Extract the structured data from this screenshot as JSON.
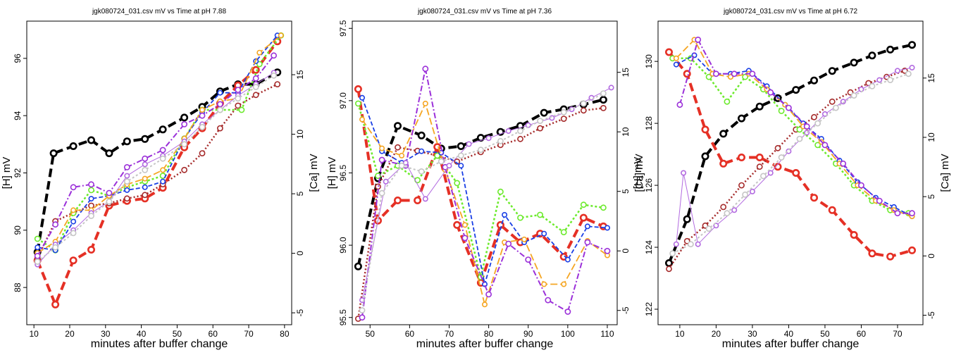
{
  "chart_data": [
    {
      "type": "line",
      "title": "jgk080724_031.csv mV vs Time at pH 7.88",
      "xlabel": "minutes after buffer change",
      "ylabel": "[H] mV",
      "y2label": "[Ca] mV",
      "xlim": [
        8,
        82
      ],
      "ylim": [
        86.7,
        97.3
      ],
      "y2lim": [
        -6.0,
        19.5
      ],
      "xticks": [
        "10",
        "20",
        "30",
        "40",
        "50",
        "60",
        "70",
        "80"
      ],
      "yticks": [
        "88",
        "90",
        "92",
        "94",
        "96"
      ],
      "y2ticks": [
        "-5",
        "0",
        "5",
        "10",
        "15"
      ],
      "grid": false,
      "legend": "none",
      "series": [
        {
          "axis": "right",
          "color": "#000000",
          "dash": "12,6",
          "width": 4,
          "x": [
            11,
            15.5,
            21,
            26,
            31,
            36,
            41,
            46,
            52,
            57,
            62,
            67,
            72,
            78
          ],
          "y": [
            0.1,
            8.4,
            9.0,
            9.5,
            8.4,
            9.4,
            9.6,
            10.4,
            11.4,
            12.3,
            13.6,
            14.2,
            14.2,
            15.2
          ]
        },
        {
          "axis": "right",
          "color": "#e53025",
          "dash": "12,6",
          "width": 4,
          "x": [
            11,
            16,
            21,
            26,
            31,
            36,
            41,
            46,
            52,
            57,
            62,
            67,
            72,
            78
          ],
          "y": [
            -0.6,
            -4.3,
            -0.6,
            0.3,
            4.0,
            4.4,
            4.6,
            5.5,
            8.9,
            10.5,
            12.6,
            14.1,
            15.4,
            17.8
          ]
        },
        {
          "axis": "right",
          "color": "#a52a2a",
          "dash": "2,3",
          "width": 2.5,
          "x": [
            11,
            16,
            21,
            26,
            31,
            36,
            41,
            46,
            52,
            57,
            62,
            67,
            72,
            78
          ],
          "y": [
            -0.4,
            2.7,
            3.4,
            4.0,
            4.2,
            4.6,
            4.9,
            5.8,
            7.0,
            8.4,
            10.5,
            12.4,
            13.3,
            14.2
          ]
        },
        {
          "axis": "left",
          "color": "#6cea2c",
          "dash": "3,3",
          "width": 2.5,
          "x": [
            11,
            16,
            21,
            26,
            31,
            36,
            41,
            46,
            52,
            57,
            62,
            68,
            73,
            79
          ],
          "y": [
            89.7,
            89.3,
            90.6,
            91.4,
            91.2,
            91.5,
            91.7,
            91.9,
            93.2,
            94.2,
            94.2,
            94.2,
            95.8,
            96.8
          ]
        },
        {
          "axis": "left",
          "color": "#1a3fe5",
          "dash": "6,3",
          "width": 1.8,
          "x": [
            11,
            16,
            21,
            26,
            31,
            36,
            41,
            46,
            52,
            57,
            62,
            67,
            72,
            78
          ],
          "y": [
            89.4,
            89.3,
            90.3,
            91.1,
            91.2,
            91.4,
            91.5,
            91.7,
            93.2,
            94.1,
            94.8,
            94.8,
            95.9,
            96.8
          ]
        },
        {
          "axis": "left",
          "color": "#f5a623",
          "dash": "10,4",
          "width": 1.8,
          "x": [
            11,
            16,
            21,
            26,
            31,
            36,
            41,
            46,
            52,
            57,
            62,
            67,
            73,
            79
          ],
          "y": [
            89.2,
            89.6,
            90.7,
            90.7,
            91.2,
            91.6,
            91.8,
            92.1,
            93.2,
            94.2,
            94.5,
            94.6,
            96.2,
            96.8
          ]
        },
        {
          "axis": "left",
          "color": "#9b30d9",
          "dash": "8,3,2,3",
          "width": 2,
          "x": [
            11,
            16,
            21,
            26,
            31,
            36,
            41,
            46,
            52,
            57,
            62,
            67,
            72,
            77
          ],
          "y": [
            89.1,
            90.2,
            91.5,
            91.6,
            91.3,
            92.2,
            92.5,
            92.8,
            93.7,
            94.0,
            94.4,
            94.9,
            95.3,
            96.1
          ]
        },
        {
          "axis": "left",
          "color": "#b26ae0",
          "dash": "",
          "width": 1,
          "x": [
            11,
            16,
            21,
            26,
            31,
            36,
            41,
            46,
            52,
            57,
            62,
            67,
            72,
            77
          ],
          "y": [
            88.8,
            89.5,
            90.0,
            90.6,
            91.0,
            91.9,
            92.3,
            92.6,
            93.1,
            93.7,
            94.2,
            94.7,
            95.1,
            95.5
          ]
        },
        {
          "axis": "left",
          "color": "#c5c5c5",
          "dash": "3,3",
          "width": 2,
          "x": [
            11,
            16,
            21,
            26,
            31,
            36,
            41,
            46,
            52,
            57,
            62,
            67,
            72,
            77
          ],
          "y": [
            88.9,
            89.4,
            89.9,
            90.5,
            91.0,
            91.7,
            92.1,
            92.5,
            93.0,
            93.6,
            94.2,
            94.6,
            95.0,
            95.4
          ]
        }
      ]
    },
    {
      "type": "line",
      "title": "jgk080724_031.csv mV vs Time at pH 7.36",
      "xlabel": "minutes after buffer change",
      "ylabel": "[H] mV",
      "y2label": "[Ca] mV",
      "xlim": [
        45.5,
        112.5
      ],
      "ylim": [
        95.45,
        97.55
      ],
      "y2lim": [
        -6.2,
        19.3
      ],
      "xticks": [
        "50",
        "60",
        "70",
        "80",
        "90",
        "100",
        "110"
      ],
      "yticks": [
        "95.5",
        "96.0",
        "96.5",
        "97.0",
        "97.5"
      ],
      "y2ticks": [
        "-5",
        "0",
        "5",
        "10",
        "15"
      ],
      "grid": false,
      "legend": "none",
      "series": [
        {
          "axis": "right",
          "color": "#000000",
          "dash": "12,6",
          "width": 4,
          "x": [
            47,
            52,
            57,
            63,
            68,
            73,
            78,
            83,
            88,
            94,
            99,
            104,
            109
          ],
          "y": [
            -1.3,
            6.1,
            10.5,
            9.7,
            8.6,
            8.8,
            9.5,
            10.0,
            10.5,
            11.6,
            11.9,
            12.3,
            12.7
          ]
        },
        {
          "axis": "left",
          "color": "#e53025",
          "dash": "12,6",
          "width": 4,
          "x": [
            47,
            52,
            57,
            62,
            67,
            72,
            78,
            83,
            88,
            93,
            99,
            104,
            109
          ],
          "y": [
            97.08,
            96.17,
            96.31,
            96.31,
            96.68,
            96.14,
            95.74,
            96.14,
            96.02,
            96.08,
            95.92,
            96.19,
            96.13
          ]
        },
        {
          "axis": "right",
          "color": "#a52a2a",
          "dash": "2,3",
          "width": 2.5,
          "x": [
            47,
            52,
            57,
            62,
            67,
            72,
            78,
            83,
            88,
            93,
            99,
            104,
            109
          ],
          "y": [
            -5.7,
            5.4,
            8.7,
            8.4,
            8.0,
            7.5,
            8.3,
            8.9,
            9.4,
            10.3,
            11.1,
            11.8,
            12.0
          ]
        },
        {
          "axis": "left",
          "color": "#6cea2c",
          "dash": "3,3",
          "width": 2.5,
          "x": [
            47,
            52,
            57,
            62,
            67,
            72,
            78,
            83,
            88,
            93,
            99,
            104,
            109
          ],
          "y": [
            96.98,
            96.48,
            96.55,
            96.45,
            96.62,
            96.43,
            95.78,
            96.37,
            96.19,
            96.21,
            96.09,
            96.28,
            96.26
          ]
        },
        {
          "axis": "left",
          "color": "#1a3fe5",
          "dash": "6,3",
          "width": 1.8,
          "x": [
            48,
            53,
            58,
            63,
            68,
            73,
            79,
            84,
            89,
            94,
            100,
            105,
            110
          ],
          "y": [
            97.02,
            96.65,
            96.57,
            96.65,
            96.64,
            96.55,
            95.73,
            96.21,
            96.02,
            96.08,
            95.9,
            96.13,
            96.12
          ]
        },
        {
          "axis": "left",
          "color": "#f5a623",
          "dash": "10,4",
          "width": 1.8,
          "x": [
            48,
            53,
            58,
            64,
            69,
            74,
            79,
            84,
            89,
            94,
            99,
            105,
            110
          ],
          "y": [
            96.87,
            96.67,
            96.62,
            96.98,
            96.52,
            96.14,
            95.59,
            96.02,
            96.04,
            95.73,
            95.73,
            96.03,
            95.93
          ]
        },
        {
          "axis": "left",
          "color": "#9b30d9",
          "dash": "8,3,2,3",
          "width": 2,
          "x": [
            48,
            53,
            59,
            64,
            69,
            74,
            80,
            85,
            90,
            95,
            100,
            105,
            110
          ],
          "y": [
            95.5,
            96.59,
            96.55,
            97.22,
            96.54,
            96.05,
            95.66,
            96.01,
            95.9,
            95.62,
            95.54,
            96.02,
            95.96
          ]
        },
        {
          "axis": "left",
          "color": "#b26ae0",
          "dash": "",
          "width": 1,
          "x": [
            48,
            54,
            59,
            64,
            70,
            75,
            80,
            85,
            90,
            96,
            101,
            106,
            111
          ],
          "y": [
            95.62,
            96.44,
            96.57,
            96.32,
            96.55,
            96.7,
            96.74,
            96.79,
            96.83,
            96.88,
            96.94,
            97.02,
            97.09
          ]
        },
        {
          "axis": "left",
          "color": "#c5c5c5",
          "dash": "3,3",
          "width": 2,
          "x": [
            48,
            53,
            58,
            63,
            68,
            73,
            78,
            83,
            88,
            93,
            99,
            104,
            109
          ],
          "y": [
            95.55,
            96.36,
            96.55,
            96.51,
            96.58,
            96.62,
            96.66,
            96.72,
            96.79,
            96.86,
            96.92,
            96.98,
            97.05
          ]
        }
      ]
    },
    {
      "type": "line",
      "title": "jgk080724_031.csv mV vs Time at pH 6.72",
      "xlabel": "minutes after buffer change",
      "ylabel": "[H] mV",
      "y2label": "[Ca] mV",
      "xlim": [
        4,
        77
      ],
      "ylim": [
        121.5,
        131.3
      ],
      "y2lim": [
        -5.8,
        19.8
      ],
      "xticks": [
        "10",
        "20",
        "30",
        "40",
        "50",
        "60",
        "70"
      ],
      "yticks": [
        "122",
        "124",
        "126",
        "128",
        "130"
      ],
      "y2ticks": [
        "-5",
        "0",
        "5",
        "10",
        "15"
      ],
      "grid": false,
      "legend": "none",
      "series": [
        {
          "axis": "right",
          "color": "#000000",
          "dash": "12,6",
          "width": 4,
          "x": [
            7,
            12,
            17,
            22,
            27,
            32,
            37,
            42,
            47,
            52,
            58,
            63,
            68,
            74
          ],
          "y": [
            -0.6,
            3.1,
            8.4,
            10.3,
            11.6,
            12.6,
            13.3,
            14.0,
            14.8,
            15.6,
            16.3,
            16.9,
            17.4,
            17.8
          ]
        },
        {
          "axis": "left",
          "color": "#e53025",
          "dash": "12,6",
          "width": 4,
          "x": [
            7,
            12,
            17,
            22,
            27,
            32,
            37,
            42,
            47,
            52,
            58,
            63,
            68,
            74
          ],
          "y": [
            130.3,
            129.6,
            127.8,
            126.7,
            126.9,
            126.9,
            126.6,
            126.4,
            125.6,
            125.2,
            124.4,
            123.8,
            123.7,
            123.9
          ]
        },
        {
          "axis": "left",
          "color": "#a52a2a",
          "dash": "2,3",
          "width": 2.5,
          "x": [
            7,
            12,
            17,
            22,
            27,
            32,
            37,
            42,
            47,
            52,
            57,
            62,
            67,
            72
          ],
          "y": [
            123.3,
            124.2,
            124.7,
            125.3,
            126.0,
            126.6,
            127.2,
            127.8,
            128.2,
            128.7,
            129.0,
            129.3,
            129.5,
            129.7
          ]
        },
        {
          "axis": "left",
          "color": "#6cea2c",
          "dash": "3,3",
          "width": 2.5,
          "x": [
            8,
            13,
            18,
            23,
            28,
            33,
            38,
            43,
            48,
            53,
            58,
            63,
            68,
            73
          ],
          "y": [
            130.1,
            130.1,
            129.5,
            128.7,
            129.5,
            129.1,
            128.4,
            127.8,
            127.3,
            126.7,
            126.0,
            125.5,
            125.2,
            125.1
          ]
        },
        {
          "axis": "left",
          "color": "#1a3fe5",
          "dash": "6,3",
          "width": 1.8,
          "x": [
            9,
            14,
            19,
            24,
            29,
            34,
            39,
            44,
            49,
            54,
            59,
            64,
            69,
            74
          ],
          "y": [
            129.9,
            130.2,
            129.6,
            129.6,
            129.7,
            129.2,
            128.6,
            128.0,
            127.5,
            126.8,
            126.1,
            125.6,
            125.3,
            125.0
          ]
        },
        {
          "axis": "left",
          "color": "#f5a623",
          "dash": "10,4",
          "width": 1.8,
          "x": [
            9,
            14,
            19,
            24,
            29,
            34,
            39,
            44,
            49,
            54,
            59,
            64,
            69,
            74
          ],
          "y": [
            130.1,
            130.7,
            129.6,
            129.5,
            129.6,
            129.1,
            128.6,
            127.9,
            127.4,
            126.7,
            126.0,
            125.5,
            125.2,
            125.0
          ]
        },
        {
          "axis": "left",
          "color": "#9b30d9",
          "dash": "8,3,2,3",
          "width": 2,
          "x": [
            10,
            15,
            20,
            25,
            30,
            35,
            40,
            45,
            50,
            55,
            60,
            65,
            70,
            74
          ],
          "y": [
            128.6,
            130.7,
            129.6,
            129.6,
            129.6,
            129.0,
            128.5,
            127.9,
            127.3,
            126.7,
            126.0,
            125.5,
            125.1,
            125.1
          ]
        },
        {
          "axis": "left",
          "color": "#b26ae0",
          "dash": "",
          "width": 1,
          "x": [
            9,
            11,
            15,
            20,
            25,
            30,
            35,
            40,
            45,
            50,
            55,
            60,
            65,
            70,
            74
          ],
          "y": [
            124.1,
            126.4,
            124.1,
            124.7,
            125.2,
            125.8,
            126.4,
            127.1,
            127.7,
            128.3,
            128.7,
            129.1,
            129.4,
            129.7,
            129.8
          ]
        },
        {
          "axis": "left",
          "color": "#c5c5c5",
          "dash": "3,3",
          "width": 2,
          "x": [
            8,
            13,
            18,
            23,
            28,
            33,
            38,
            43,
            48,
            53,
            58,
            63,
            68,
            73
          ],
          "y": [
            123.8,
            124.1,
            124.6,
            125.1,
            125.7,
            126.3,
            126.9,
            127.5,
            128.0,
            128.5,
            128.9,
            129.2,
            129.4,
            129.6
          ]
        }
      ]
    }
  ]
}
